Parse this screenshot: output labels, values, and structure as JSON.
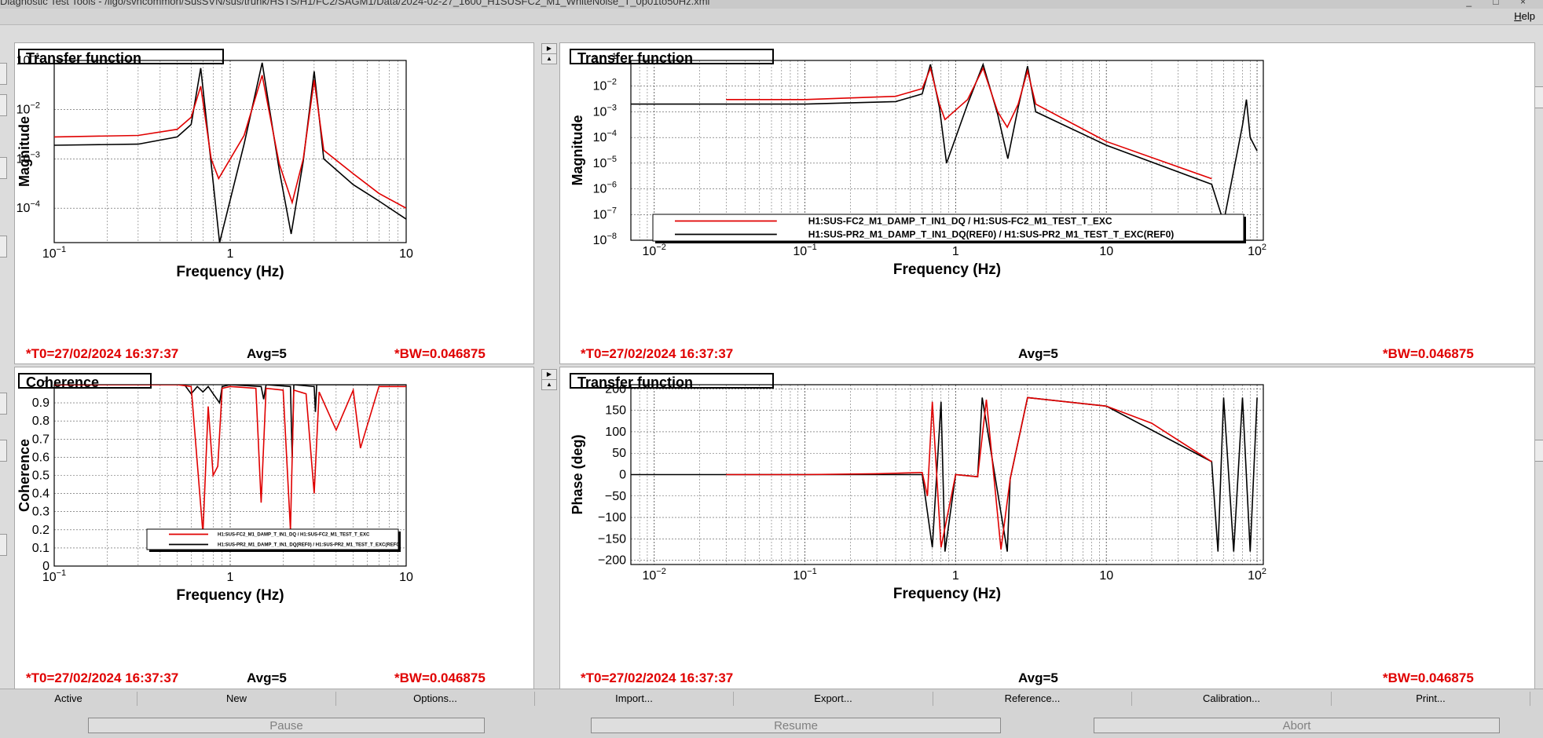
{
  "window": {
    "title": "Diagnostic Test Tools - /ligo/svncommon/SusSVN/sus/trunk/HSTS/H1/FC2/SAGM1/Data/2024-02-27_1600_H1SUSFC2_M1_WhiteNoise_T_0p01to50Hz.xml",
    "controls": "_ □ ×"
  },
  "menubar": {
    "help": "Help"
  },
  "panels": [
    {
      "title": "Transfer function",
      "xlabel": "Frequency (Hz)",
      "ylabel": "Magnitude",
      "footer_t0": "*T0=27/02/2024 16:37:37",
      "footer_avg": "Avg=5",
      "footer_bw": "*BW=0.046875",
      "xticks": [
        "10",
        "1",
        "10"
      ],
      "xtick_exps": [
        "−1",
        "",
        ""
      ],
      "yticks": [
        "10",
        "10",
        "10",
        "10"
      ],
      "ytick_exps": [
        "−1",
        "−2",
        "−3",
        "−4"
      ]
    },
    {
      "title": "Transfer function",
      "xlabel": "Frequency (Hz)",
      "ylabel": "Magnitude",
      "footer_t0": "*T0=27/02/2024 16:37:37",
      "footer_avg": "Avg=5",
      "footer_bw": "*BW=0.046875",
      "xticks": [
        "10",
        "10",
        "1",
        "10",
        "10"
      ],
      "xtick_exps": [
        "−2",
        "−1",
        "",
        "",
        "2"
      ],
      "yticks": [
        "10",
        "10",
        "10",
        "10",
        "10",
        "10",
        "10",
        "10"
      ],
      "ytick_exps": [
        "−1",
        "−2",
        "−3",
        "−4",
        "−5",
        "−6",
        "−7",
        "−8"
      ],
      "legend": [
        "H1:SUS-FC2_M1_DAMP_T_IN1_DQ / H1:SUS-FC2_M1_TEST_T_EXC",
        "H1:SUS-PR2_M1_DAMP_T_IN1_DQ(REF0) / H1:SUS-PR2_M1_TEST_T_EXC(REF0)"
      ]
    },
    {
      "title": "Coherence",
      "xlabel": "Frequency (Hz)",
      "ylabel": "Coherence",
      "footer_t0": "*T0=27/02/2024 16:37:37",
      "footer_avg": "Avg=5",
      "footer_bw": "*BW=0.046875",
      "xticks": [
        "10",
        "1",
        "10"
      ],
      "xtick_exps": [
        "−1",
        "",
        ""
      ],
      "yticks": [
        "1",
        "0.9",
        "0.8",
        "0.7",
        "0.6",
        "0.5",
        "0.4",
        "0.3",
        "0.2",
        "0.1",
        "0"
      ],
      "legend": [
        "H1:SUS-FC2_M1_DAMP_T_IN1_DQ / H1:SUS-FC2_M1_TEST_T_EXC",
        "H1:SUS-PR2_M1_DAMP_T_IN1_DQ(REF0) / H1:SUS-PR2_M1_TEST_T_EXC(REF0)"
      ]
    },
    {
      "title": "Transfer function",
      "xlabel": "Frequency (Hz)",
      "ylabel": "Phase (deg)",
      "footer_t0": "*T0=27/02/2024 16:37:37",
      "footer_avg": "Avg=5",
      "footer_bw": "*BW=0.046875",
      "xticks": [
        "10",
        "10",
        "1",
        "10",
        "10"
      ],
      "xtick_exps": [
        "−2",
        "−1",
        "",
        "",
        "2"
      ],
      "yticks": [
        "200",
        "150",
        "100",
        "50",
        "0",
        "−50",
        "−100",
        "−150",
        "−200"
      ]
    }
  ],
  "tabs": [
    "Active",
    "New",
    "Options...",
    "Import...",
    "Export...",
    "Reference...",
    "Calibration...",
    "Print..."
  ],
  "controls": [
    "Pause",
    "Resume",
    "Abort"
  ],
  "colors": {
    "series_current": "#e00000",
    "series_reference": "#000000",
    "footer_red": "#e00000"
  },
  "chart_data": [
    {
      "type": "line",
      "title": "Transfer function",
      "xlabel": "Frequency (Hz)",
      "ylabel": "Magnitude",
      "xscale": "log",
      "yscale": "log",
      "xlim": [
        0.1,
        10
      ],
      "ylim": [
        2e-05,
        0.1
      ],
      "grid": true,
      "series": [
        {
          "color": "#e00000",
          "x": [
            0.1,
            0.3,
            0.5,
            0.6,
            0.68,
            0.78,
            0.86,
            1.2,
            1.52,
            1.9,
            2.25,
            2.6,
            3.0,
            3.4,
            5,
            7,
            10
          ],
          "y": [
            0.0028,
            0.003,
            0.004,
            0.007,
            0.03,
            0.001,
            0.0004,
            0.003,
            0.05,
            0.0008,
            0.00013,
            0.001,
            0.04,
            0.0015,
            0.0005,
            0.0002,
            0.0001
          ]
        },
        {
          "color": "#000000",
          "x": [
            0.1,
            0.3,
            0.5,
            0.6,
            0.68,
            0.78,
            0.87,
            1.2,
            1.52,
            1.9,
            2.22,
            2.6,
            3.0,
            3.4,
            5,
            7,
            10
          ],
          "y": [
            0.0019,
            0.002,
            0.0028,
            0.005,
            0.07,
            0.0008,
            2e-05,
            0.002,
            0.09,
            0.0006,
            3e-05,
            0.0009,
            0.06,
            0.001,
            0.0003,
            0.00014,
            6e-05
          ]
        }
      ]
    },
    {
      "type": "line",
      "title": "Transfer function",
      "xlabel": "Frequency (Hz)",
      "ylabel": "Magnitude",
      "xscale": "log",
      "yscale": "log",
      "xlim": [
        0.007,
        110
      ],
      "ylim": [
        1e-08,
        0.1
      ],
      "grid": true,
      "legend_position": "bottom",
      "series": [
        {
          "name": "H1:SUS-FC2_M1_DAMP_T_IN1_DQ / H1:SUS-FC2_M1_TEST_T_EXC",
          "color": "#e00000",
          "x": [
            0.03,
            0.1,
            0.4,
            0.6,
            0.68,
            0.78,
            0.85,
            1.2,
            1.52,
            1.9,
            2.2,
            2.6,
            3.0,
            3.4,
            10,
            50
          ],
          "y": [
            0.003,
            0.003,
            0.004,
            0.008,
            0.05,
            0.002,
            0.0005,
            0.003,
            0.05,
            0.001,
            0.00025,
            0.002,
            0.04,
            0.002,
            7e-05,
            2.5e-06
          ]
        },
        {
          "name": "H1:SUS-PR2_M1_DAMP_T_IN1_DQ(REF0) / H1:SUS-PR2_M1_TEST_T_EXC(REF0)",
          "color": "#000000",
          "x": [
            0.007,
            0.1,
            0.4,
            0.6,
            0.68,
            0.78,
            0.87,
            1.2,
            1.52,
            1.9,
            2.22,
            2.6,
            3.0,
            3.4,
            10,
            50,
            60,
            80,
            85,
            90,
            100
          ],
          "y": [
            0.002,
            0.002,
            0.0025,
            0.005,
            0.07,
            0.0015,
            1e-05,
            0.002,
            0.07,
            0.0008,
            1.5e-05,
            0.0015,
            0.06,
            0.001,
            5e-05,
            1.5e-06,
            5e-08,
            0.0003,
            0.003,
            0.0001,
            3e-05
          ]
        }
      ]
    },
    {
      "type": "line",
      "title": "Coherence",
      "xlabel": "Frequency (Hz)",
      "ylabel": "Coherence",
      "xscale": "log",
      "xlim": [
        0.1,
        10
      ],
      "ylim": [
        0,
        1
      ],
      "grid": true,
      "legend_position": "bottom-right",
      "series": [
        {
          "name": "H1:SUS-FC2_M1_DAMP_T_IN1_DQ / H1:SUS-FC2_M1_TEST_T_EXC",
          "color": "#e00000",
          "x": [
            0.1,
            0.5,
            0.6,
            0.7,
            0.75,
            0.8,
            0.85,
            0.9,
            1.0,
            1.4,
            1.5,
            1.6,
            2.0,
            2.2,
            2.3,
            2.7,
            3.0,
            3.2,
            4,
            5,
            5.5,
            7,
            10
          ],
          "y": [
            1,
            1,
            0.99,
            0.18,
            0.88,
            0.5,
            0.55,
            0.98,
            0.99,
            0.98,
            0.35,
            0.98,
            0.97,
            0.2,
            0.97,
            0.95,
            0.4,
            0.96,
            0.75,
            0.97,
            0.65,
            0.99,
            0.99
          ]
        },
        {
          "color": "#000000",
          "x": [
            0.1,
            0.55,
            0.6,
            0.65,
            0.7,
            0.75,
            0.8,
            0.87,
            0.9,
            1.0,
            1.5,
            1.55,
            1.6,
            2.2,
            2.25,
            2.3,
            3.0,
            3.05,
            3.1,
            10
          ],
          "y": [
            1,
            1,
            0.95,
            0.99,
            0.96,
            0.99,
            0.95,
            0.9,
            0.99,
            1,
            0.99,
            0.92,
            1,
            0.99,
            0.6,
            1,
            0.99,
            0.85,
            1,
            1
          ]
        }
      ]
    },
    {
      "type": "line",
      "title": "Transfer function",
      "xlabel": "Frequency (Hz)",
      "ylabel": "Phase (deg)",
      "xscale": "log",
      "xlim": [
        0.007,
        110
      ],
      "ylim": [
        -210,
        210
      ],
      "grid": true,
      "series": [
        {
          "color": "#e00000",
          "x": [
            0.03,
            0.1,
            0.3,
            0.6,
            0.65,
            0.7,
            0.8,
            1.0,
            1.4,
            1.6,
            2.0,
            2.3,
            3.0,
            4,
            10,
            20,
            50
          ],
          "y": [
            0,
            0,
            2,
            5,
            -50,
            170,
            -170,
            0,
            -5,
            175,
            -175,
            -10,
            180,
            175,
            160,
            120,
            30
          ]
        },
        {
          "color": "#000000",
          "x": [
            0.007,
            0.1,
            0.3,
            0.6,
            0.7,
            0.8,
            0.85,
            1.0,
            1.4,
            1.5,
            2.2,
            2.3,
            3.0,
            10,
            50,
            55,
            60,
            70,
            80,
            90,
            100
          ],
          "y": [
            0,
            0,
            0,
            0,
            -170,
            170,
            -180,
            0,
            -5,
            180,
            -180,
            -10,
            180,
            160,
            30,
            -180,
            180,
            -180,
            180,
            -180,
            180
          ]
        }
      ]
    }
  ]
}
